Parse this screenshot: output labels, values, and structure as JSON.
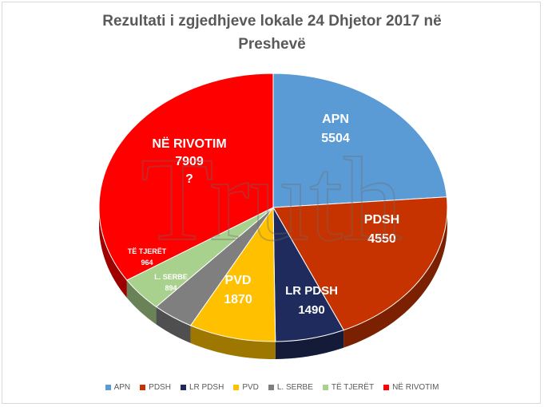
{
  "chart_data": {
    "type": "pie",
    "title_lines": [
      "Rezultati i zgjedhjeve lokale 24 Dhjetor 2017 në",
      "Preshevë"
    ],
    "slices": [
      {
        "label": "APN",
        "value": 5504,
        "color": "#5b9bd5"
      },
      {
        "label": "PDSH",
        "value": 4550,
        "color": "#c73300"
      },
      {
        "label": "LR PDSH",
        "value": 1490,
        "color": "#1f2b5c"
      },
      {
        "label": "PVD",
        "value": 1870,
        "color": "#ffc000"
      },
      {
        "label": "L. SERBE",
        "value": 894,
        "color": "#7f7f7f"
      },
      {
        "label": "TË TJERËT",
        "value": 964,
        "color": "#a9d18e"
      },
      {
        "label": "NË RIVOTIM",
        "value": 7909,
        "color": "#ff0000"
      }
    ],
    "annotation": "?",
    "legend_position": "bottom",
    "watermark": "Truth"
  }
}
